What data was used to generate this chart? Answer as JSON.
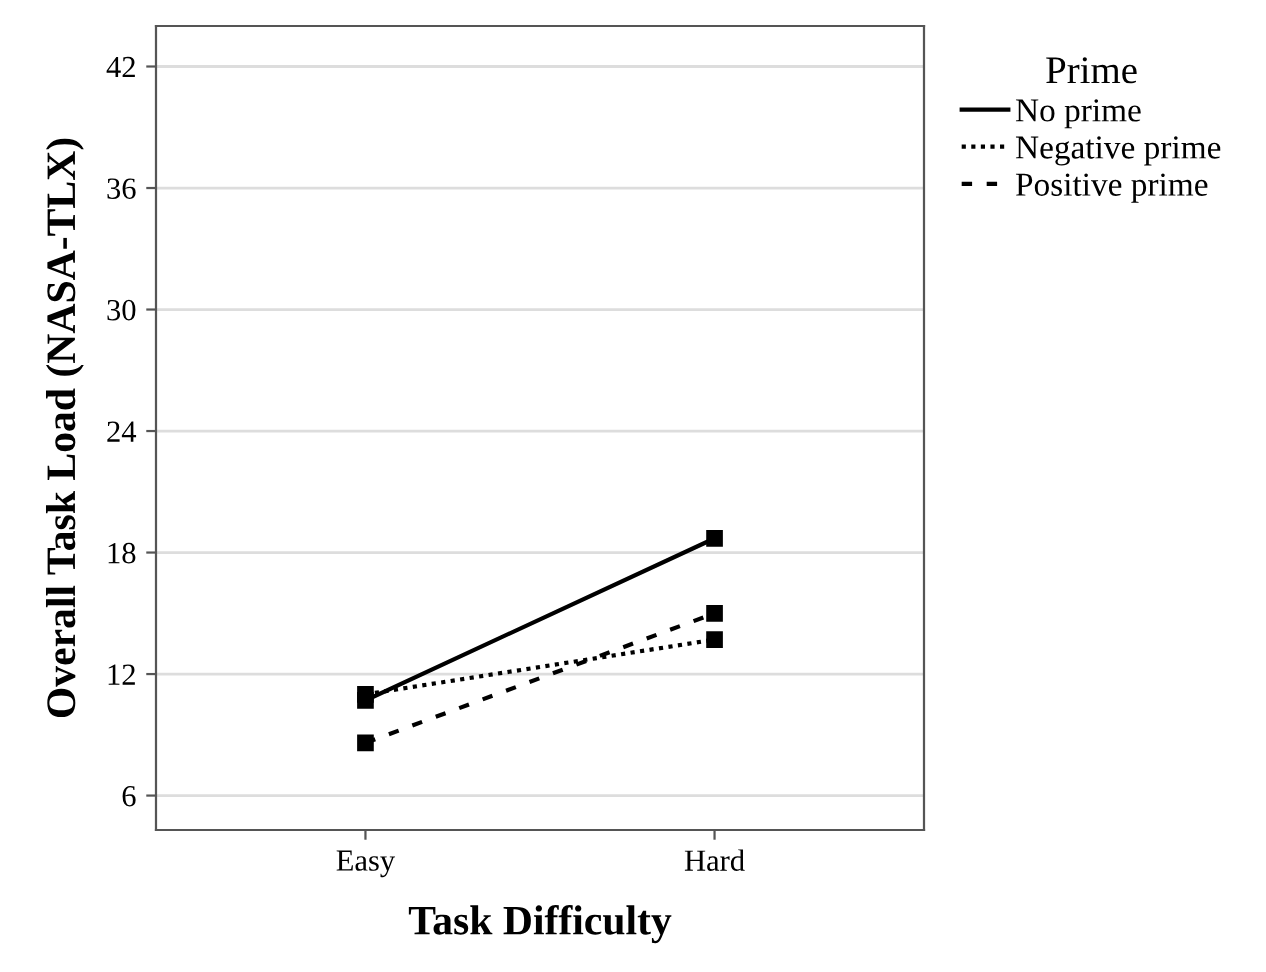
{
  "chart_data": {
    "type": "line",
    "xlabel": "Task Difficulty",
    "ylabel": "Overall Task Load (NASA-TLX)",
    "legend_title": "Prime",
    "categories": [
      "Easy",
      "Hard"
    ],
    "series": [
      {
        "name": "No prime",
        "color": "#000000",
        "values": [
          10.7,
          18.7
        ],
        "line_style": "solid"
      },
      {
        "name": "Negative prime",
        "color": "#000000",
        "values": [
          11.0,
          13.7
        ],
        "line_style": "dotted"
      },
      {
        "name": "Positive prime",
        "color": "#000000",
        "values": [
          8.6,
          15.0
        ],
        "line_style": "dashed"
      }
    ],
    "ylim": [
      4.3,
      44
    ],
    "yticks": [
      6,
      12,
      18,
      24,
      30,
      36,
      42
    ],
    "grid": "y",
    "legend": "top right",
    "marker": "square"
  }
}
